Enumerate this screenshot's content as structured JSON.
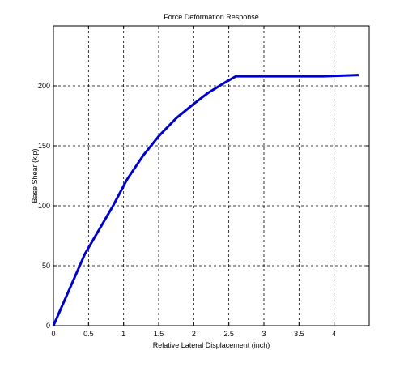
{
  "chart_data": {
    "type": "line",
    "title": "Force Deformation Response",
    "xlabel": "Relative Lateral Displacement (inch)",
    "ylabel": "Base Shear (kip)",
    "xlim": [
      0,
      4.5
    ],
    "ylim": [
      0,
      250
    ],
    "xticks": [
      0,
      0.5,
      1,
      1.5,
      2,
      2.5,
      3,
      3.5,
      4
    ],
    "xtick_labels": [
      "0",
      "0.5",
      "1",
      "1.5",
      "2",
      "2.5",
      "3",
      "3.5",
      "4"
    ],
    "yticks": [
      0,
      50,
      100,
      150,
      200
    ],
    "ytick_labels": [
      "0",
      "50",
      "100",
      "150",
      "200"
    ],
    "grid": true,
    "series": [
      {
        "color": "#0000cc",
        "x": [
          0,
          0.45,
          0.85,
          1.05,
          1.28,
          1.5,
          1.75,
          2.0,
          2.2,
          2.45,
          2.6,
          3.2,
          3.85,
          4.35
        ],
        "y": [
          0,
          60,
          100,
          122,
          142,
          158,
          173,
          185,
          194,
          203,
          208,
          208,
          208,
          209
        ]
      }
    ]
  }
}
